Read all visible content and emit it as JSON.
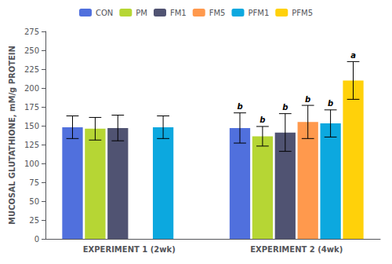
{
  "chart_data": {
    "type": "bar",
    "categories": [
      "EXPERIMENT 1 (2wk)",
      "EXPERIMENT 2 (4wk)"
    ],
    "series": [
      {
        "name": "CON",
        "values": [
          148.0,
          147.0
        ],
        "errors": [
          15.0,
          20.0
        ],
        "annotations": [
          null,
          "b"
        ]
      },
      {
        "name": "PM",
        "values": [
          146.0,
          136.0
        ],
        "errors": [
          15.0,
          13.0
        ],
        "annotations": [
          null,
          "b"
        ]
      },
      {
        "name": "FM1",
        "values": [
          147.0,
          141.0
        ],
        "errors": [
          17.0,
          25.0
        ],
        "annotations": [
          null,
          "b"
        ]
      },
      {
        "name": "FM5",
        "values": [
          null,
          155.0
        ],
        "errors": [
          null,
          22.0
        ],
        "annotations": [
          null,
          "b"
        ]
      },
      {
        "name": "PFM1",
        "values": [
          148.0,
          153.0
        ],
        "errors": [
          15.0,
          18.0
        ],
        "annotations": [
          null,
          "b"
        ]
      },
      {
        "name": "PFM5",
        "values": [
          null,
          210.0
        ],
        "errors": [
          null,
          25.0
        ],
        "annotations": [
          null,
          "a"
        ]
      }
    ],
    "ylabel": "MUCOSAL GLUTATHIONE, mM/g PROTEIN",
    "ylim": [
      0,
      275
    ],
    "yticks": [
      0,
      25,
      50,
      75,
      100,
      125,
      150,
      175,
      200,
      225,
      250,
      275
    ],
    "legend": "top",
    "grid": false
  }
}
